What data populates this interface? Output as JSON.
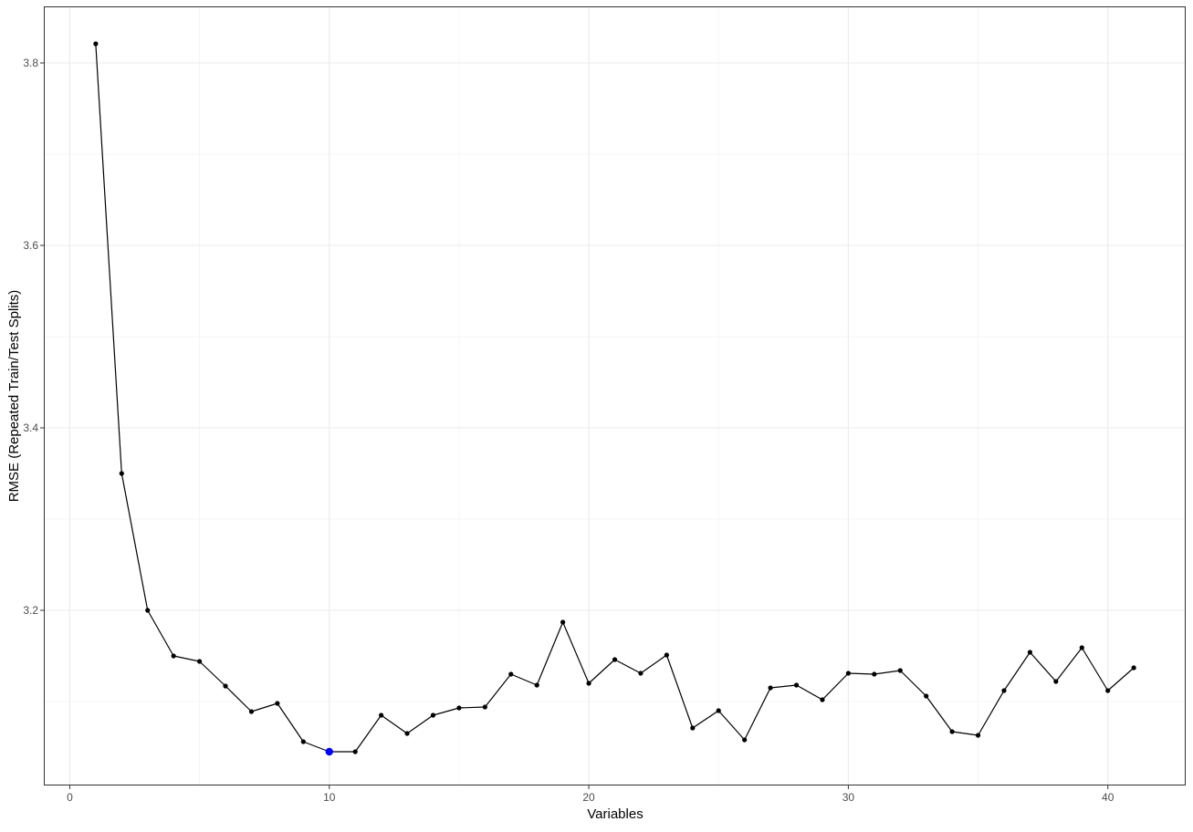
{
  "chart_data": {
    "type": "line",
    "title": "",
    "xlabel": "Variables",
    "ylabel": "RMSE (Repeated Train/Test Splits)",
    "xlim": [
      -1,
      43
    ],
    "ylim": [
      3.008,
      3.862
    ],
    "x_ticks": [
      0,
      10,
      20,
      30,
      40
    ],
    "x_tick_labels": [
      "0",
      "10",
      "20",
      "30",
      "40"
    ],
    "y_ticks": [
      3.2,
      3.4,
      3.6,
      3.8
    ],
    "y_tick_labels": [
      "3.2",
      "3.4",
      "3.6",
      "3.8"
    ],
    "grid": true,
    "legend": "none",
    "highlight": {
      "x": 10,
      "y": 3.045,
      "color": "#0000ff"
    },
    "line_color": "#000000",
    "point_color": "#000000",
    "series": [
      {
        "x": [
          1,
          2,
          3,
          4,
          5,
          6,
          7,
          8,
          9,
          10,
          11,
          12,
          13,
          14,
          15,
          16,
          17,
          18,
          19,
          20,
          21,
          22,
          23,
          24,
          25,
          26,
          27,
          28,
          29,
          30,
          31,
          32,
          33,
          34,
          35,
          36,
          37,
          38,
          39,
          40,
          41
        ],
        "values": [
          3.821,
          3.35,
          3.2,
          3.15,
          3.144,
          3.117,
          3.089,
          3.098,
          3.056,
          3.045,
          3.045,
          3.085,
          3.065,
          3.085,
          3.093,
          3.094,
          3.13,
          3.118,
          3.187,
          3.12,
          3.146,
          3.131,
          3.151,
          3.071,
          3.09,
          3.058,
          3.115,
          3.118,
          3.102,
          3.131,
          3.13,
          3.134,
          3.106,
          3.067,
          3.063,
          3.112,
          3.154,
          3.122,
          3.159,
          3.112,
          3.137
        ]
      }
    ]
  }
}
